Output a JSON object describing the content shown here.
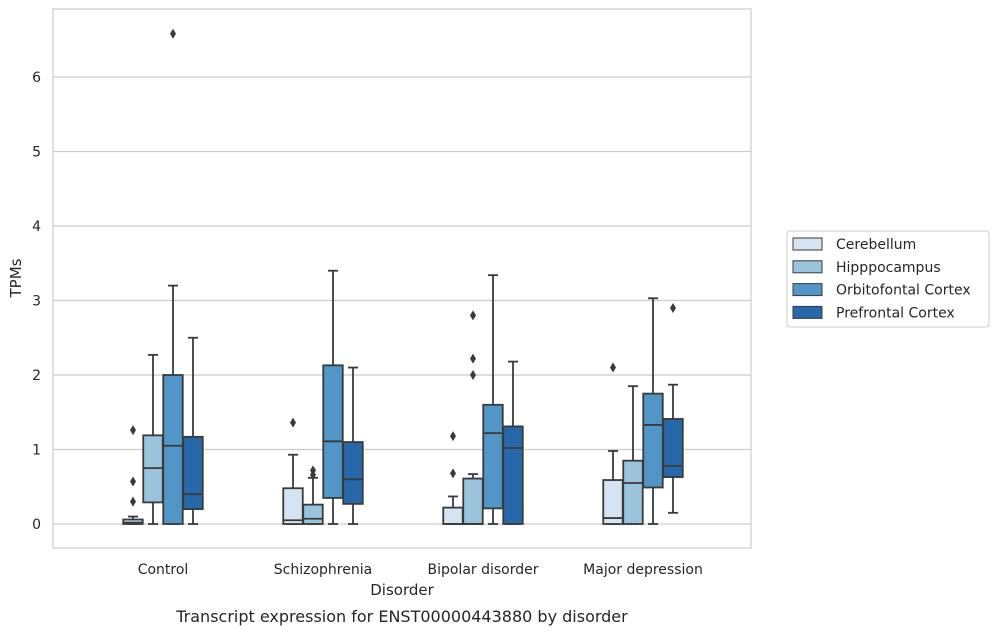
{
  "chart_data": {
    "type": "boxplot",
    "title": "",
    "caption": "Transcript expression for ENST00000443880 by disorder",
    "xlabel": "Disorder",
    "ylabel": "TPMs",
    "ylim": [
      -0.32,
      6.9
    ],
    "yticks": [
      0,
      1,
      2,
      3,
      4,
      5,
      6
    ],
    "grid": "horizontal",
    "legend_position": "right",
    "categories": [
      "Control",
      "Schizophrenia",
      "Bipolar disorder",
      "Major depression"
    ],
    "series": [
      {
        "name": "Cerebellum",
        "color": "#d4e4f2",
        "boxes": [
          {
            "min": 0,
            "q1": 0,
            "median": 0.02,
            "q3": 0.06,
            "max": 0.1,
            "outliers": [
              0.3,
              0.57,
              1.26
            ]
          },
          {
            "min": 0,
            "q1": 0,
            "median": 0.05,
            "q3": 0.48,
            "max": 0.93,
            "outliers": [
              1.36
            ]
          },
          {
            "min": 0,
            "q1": 0,
            "median": 0,
            "q3": 0.22,
            "max": 0.37,
            "outliers": [
              0.68,
              1.18
            ]
          },
          {
            "min": 0,
            "q1": 0,
            "median": 0.08,
            "q3": 0.59,
            "max": 0.98,
            "outliers": [
              2.1
            ]
          }
        ]
      },
      {
        "name": "Hipppocampus",
        "color": "#9ac3dc",
        "boxes": [
          {
            "min": 0,
            "q1": 0.29,
            "median": 0.75,
            "q3": 1.19,
            "max": 2.27,
            "outliers": []
          },
          {
            "min": 0,
            "q1": 0,
            "median": 0.07,
            "q3": 0.26,
            "max": 0.62,
            "outliers": [
              0.66,
              0.72
            ]
          },
          {
            "min": 0,
            "q1": 0,
            "median": 0,
            "q3": 0.61,
            "max": 0.67,
            "outliers": [
              2.0,
              2.22,
              2.8
            ]
          },
          {
            "min": 0,
            "q1": 0,
            "median": 0.55,
            "q3": 0.85,
            "max": 1.85,
            "outliers": []
          }
        ]
      },
      {
        "name": "Orbitofontal Cortex",
        "color": "#5296c8",
        "boxes": [
          {
            "min": 0,
            "q1": 0,
            "median": 1.05,
            "q3": 2.0,
            "max": 3.2,
            "outliers": [
              6.58
            ]
          },
          {
            "min": 0,
            "q1": 0.35,
            "median": 1.11,
            "q3": 2.13,
            "max": 3.4,
            "outliers": []
          },
          {
            "min": 0,
            "q1": 0.21,
            "median": 1.22,
            "q3": 1.6,
            "max": 3.34,
            "outliers": []
          },
          {
            "min": 0,
            "q1": 0.49,
            "median": 1.33,
            "q3": 1.75,
            "max": 3.03,
            "outliers": []
          }
        ]
      },
      {
        "name": "Prefrontal Cortex",
        "color": "#2768aa",
        "boxes": [
          {
            "min": 0,
            "q1": 0.2,
            "median": 0.4,
            "q3": 1.17,
            "max": 2.5,
            "outliers": []
          },
          {
            "min": 0,
            "q1": 0.27,
            "median": 0.6,
            "q3": 1.1,
            "max": 2.1,
            "outliers": []
          },
          {
            "min": 0,
            "q1": 0,
            "median": 1.02,
            "q3": 1.31,
            "max": 2.18,
            "outliers": []
          },
          {
            "min": 0.15,
            "q1": 0.63,
            "median": 0.78,
            "q3": 1.41,
            "max": 1.87,
            "outliers": [
              2.9
            ]
          }
        ]
      }
    ]
  }
}
